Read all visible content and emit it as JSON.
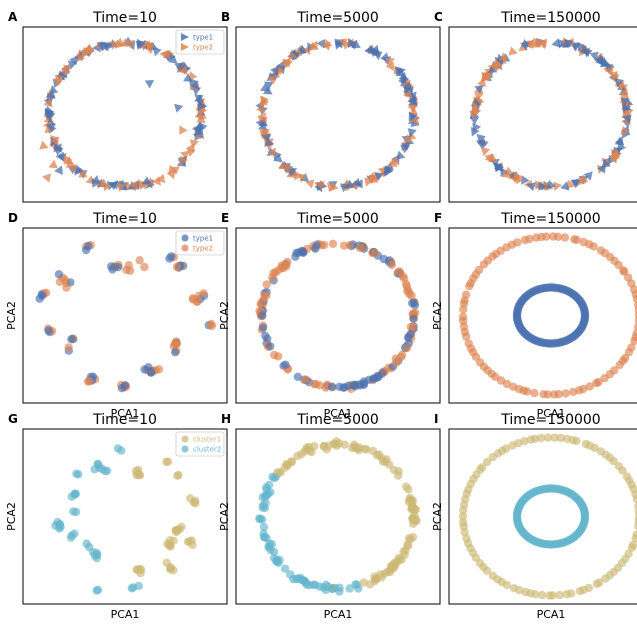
{
  "figure": {
    "colors": {
      "type1": "#4c72b0",
      "type2": "#dd8452",
      "cluster1": "#ccb974",
      "cluster2": "#64b5cd"
    }
  },
  "chart_data": [
    {
      "id": "A",
      "label": "A",
      "title": "Time=10",
      "type": "scatter",
      "marker": "triangle",
      "layout": "ring-noisy",
      "legend": {
        "position": "top-right",
        "entries": [
          "type1",
          "type2"
        ]
      },
      "series": [
        {
          "name": "type1",
          "color": "#4c72b0"
        },
        {
          "name": "type2",
          "color": "#dd8452"
        }
      ],
      "xlabel": "",
      "ylabel": ""
    },
    {
      "id": "B",
      "label": "B",
      "title": "Time=5000",
      "type": "scatter",
      "marker": "triangle",
      "layout": "ring",
      "series": [
        {
          "name": "type1",
          "color": "#4c72b0"
        },
        {
          "name": "type2",
          "color": "#dd8452"
        }
      ],
      "xlabel": "",
      "ylabel": ""
    },
    {
      "id": "C",
      "label": "C",
      "title": "Time=150000",
      "type": "scatter",
      "marker": "triangle",
      "layout": "ring",
      "series": [
        {
          "name": "type1",
          "color": "#4c72b0"
        },
        {
          "name": "type2",
          "color": "#dd8452"
        }
      ],
      "xlabel": "",
      "ylabel": ""
    },
    {
      "id": "D",
      "label": "D",
      "title": "Time=10",
      "type": "scatter",
      "marker": "circle",
      "layout": "clusters",
      "legend": {
        "position": "top-right",
        "entries": [
          "type1",
          "type2"
        ]
      },
      "series": [
        {
          "name": "type1",
          "color": "#4c72b0"
        },
        {
          "name": "type2",
          "color": "#dd8452"
        }
      ],
      "xlabel": "PCA1",
      "ylabel": "PCA2"
    },
    {
      "id": "E",
      "label": "E",
      "title": "Time=5000",
      "type": "scatter",
      "marker": "circle",
      "layout": "ring",
      "series": [
        {
          "name": "type1",
          "color": "#4c72b0"
        },
        {
          "name": "type2",
          "color": "#dd8452"
        }
      ],
      "xlabel": "PCA1",
      "ylabel": "PCA2"
    },
    {
      "id": "F",
      "label": "F",
      "title": "Time=150000",
      "type": "scatter",
      "marker": "circle",
      "layout": "two-rings",
      "inner_series": "type1",
      "outer_series": "type2",
      "series": [
        {
          "name": "type1",
          "color": "#4c72b0"
        },
        {
          "name": "type2",
          "color": "#dd8452"
        }
      ],
      "xlabel": "PCA1",
      "ylabel": "PCA2"
    },
    {
      "id": "G",
      "label": "G",
      "title": "Time=10",
      "type": "scatter",
      "marker": "circle",
      "layout": "clusters",
      "legend": {
        "position": "top-right",
        "entries": [
          "cluster1",
          "cluster2"
        ]
      },
      "series": [
        {
          "name": "cluster1",
          "color": "#ccb974"
        },
        {
          "name": "cluster2",
          "color": "#64b5cd"
        }
      ],
      "xlabel": "PCA1",
      "ylabel": "PCA2"
    },
    {
      "id": "H",
      "label": "H",
      "title": "Time=5000",
      "type": "scatter",
      "marker": "circle",
      "layout": "ring-split",
      "split_series": "cluster2",
      "series": [
        {
          "name": "cluster1",
          "color": "#ccb974"
        },
        {
          "name": "cluster2",
          "color": "#64b5cd"
        }
      ],
      "xlabel": "PCA1",
      "ylabel": "PCA2"
    },
    {
      "id": "I",
      "label": "I",
      "title": "Time=150000",
      "type": "scatter",
      "marker": "circle",
      "layout": "two-rings",
      "inner_series": "cluster2",
      "outer_series": "cluster1",
      "series": [
        {
          "name": "cluster1",
          "color": "#ccb974"
        },
        {
          "name": "cluster2",
          "color": "#64b5cd"
        }
      ],
      "xlabel": "PCA1",
      "ylabel": "PCA2"
    }
  ]
}
